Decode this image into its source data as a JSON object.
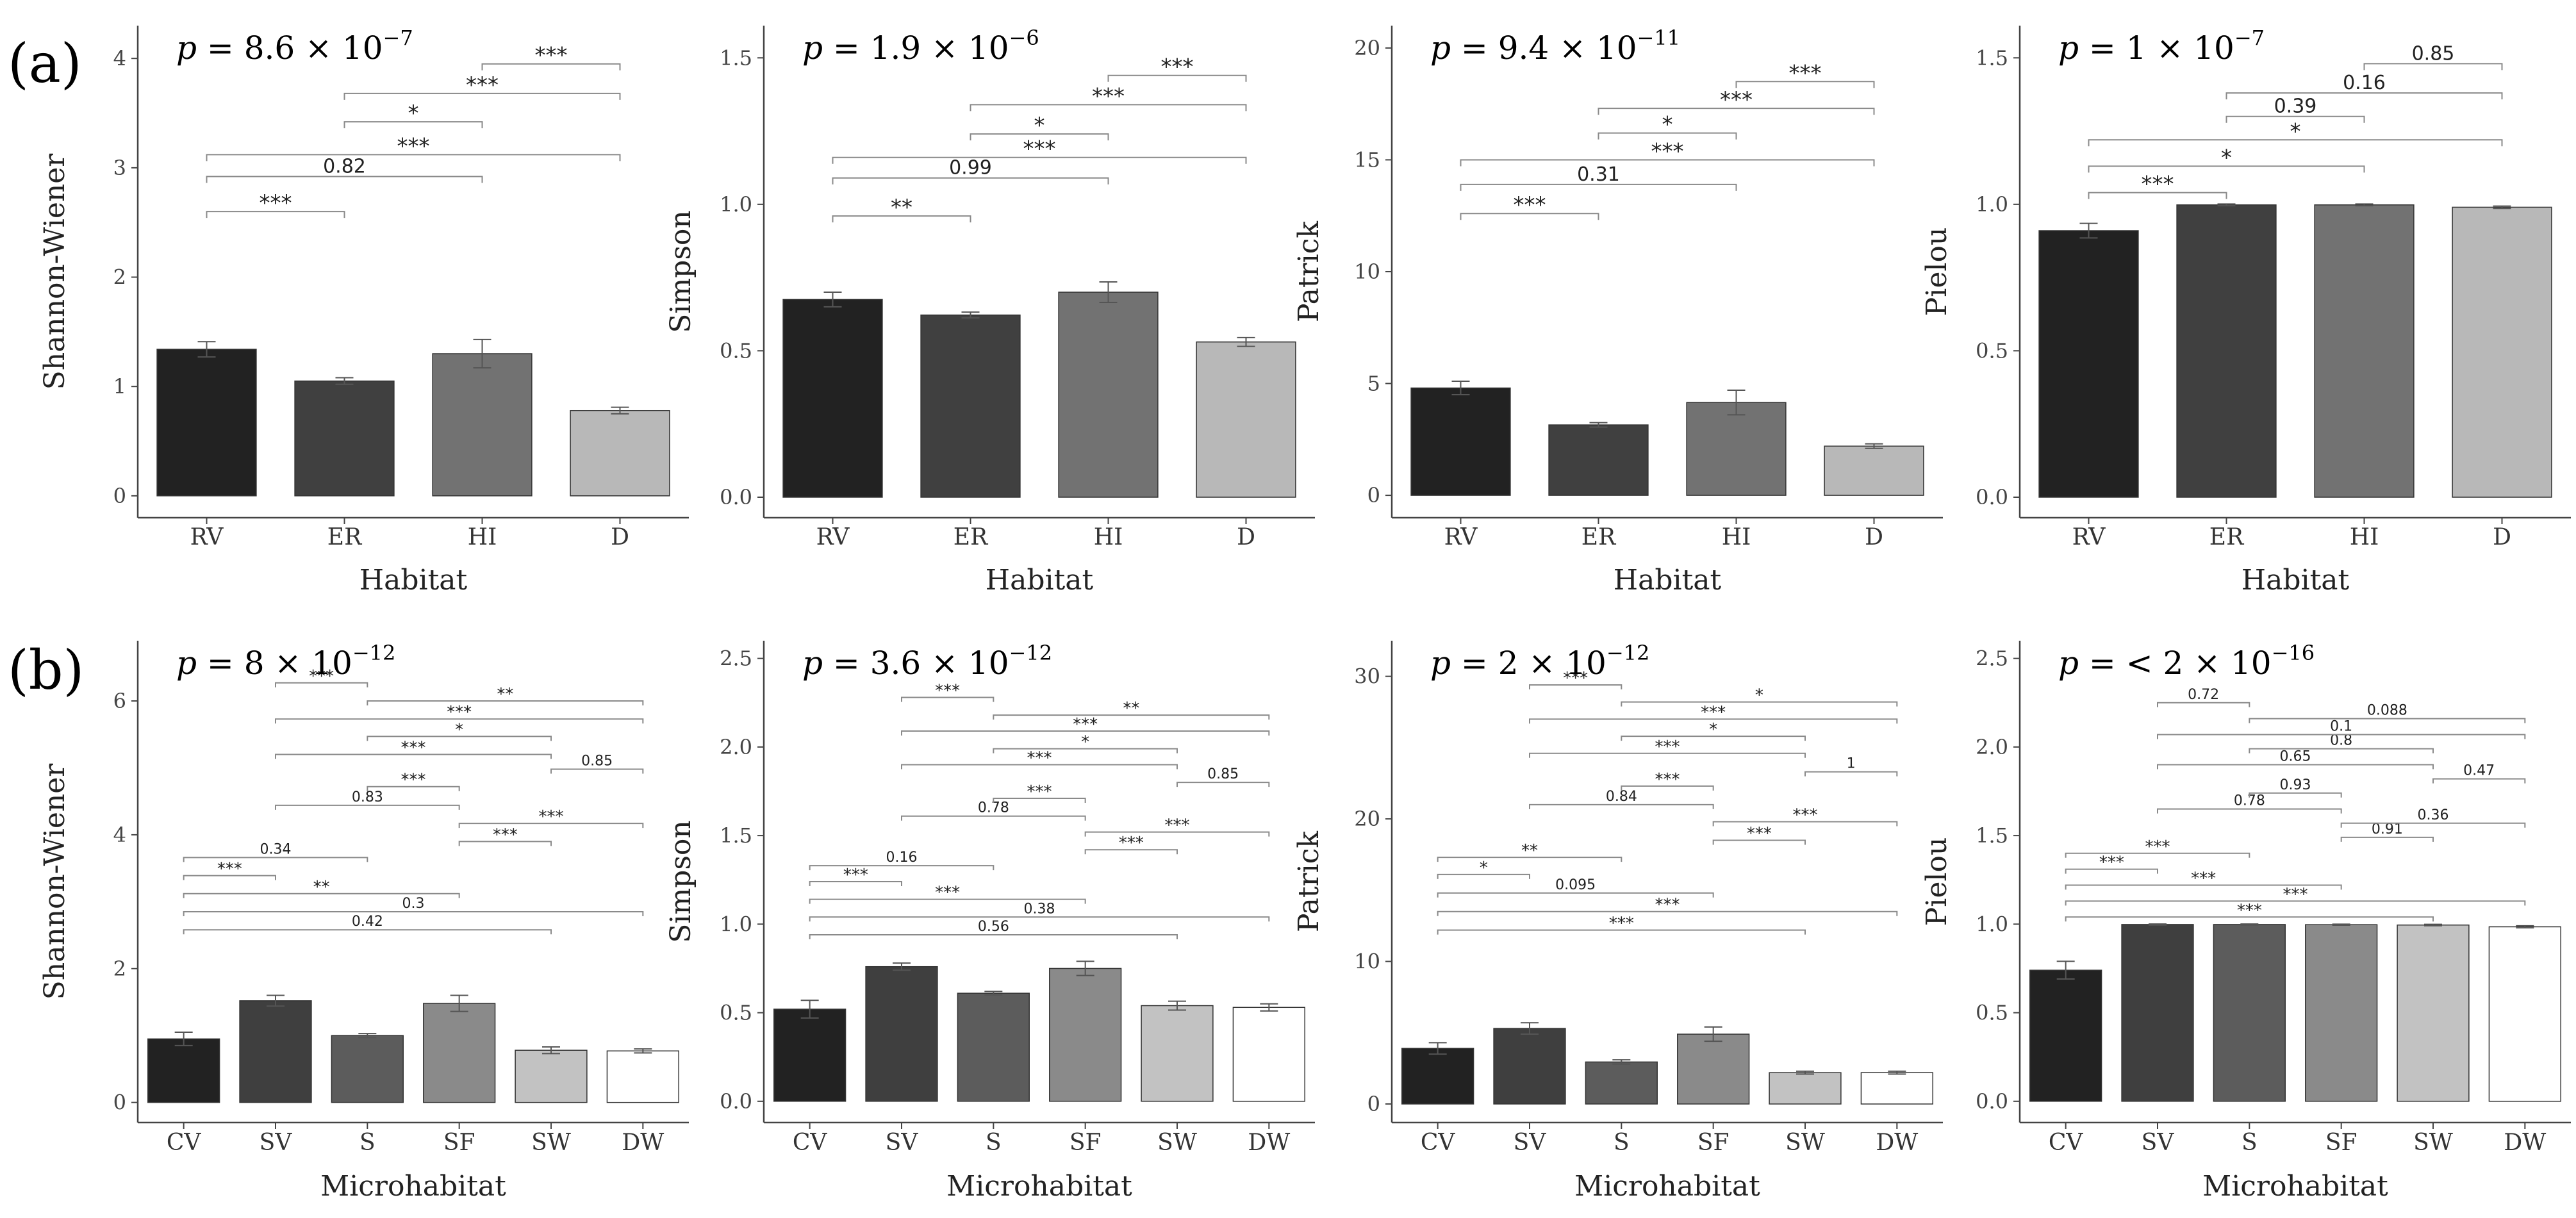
{
  "figure": {
    "row_labels": [
      "(a)",
      "(b)"
    ],
    "colors": {
      "habitat": [
        "#222222",
        "#404040",
        "#727272",
        "#b8b8b8"
      ],
      "microhabitat": [
        "#222222",
        "#3f3f3f",
        "#5c5c5c",
        "#8a8a8a",
        "#c2c2c2",
        "#ffffff"
      ],
      "axis": "#444444",
      "bracket": "#8a8a8a"
    }
  },
  "chart_data": [
    {
      "type": "bar",
      "row": 0,
      "col": 0,
      "title": {
        "base": "8.6",
        "exp": "−7",
        "prefix": ""
      },
      "xlabel": "Habitat",
      "ylabel": "Shannon-Wiener",
      "categories": [
        "RV",
        "ER",
        "HI",
        "D"
      ],
      "values": [
        1.34,
        1.05,
        1.3,
        0.78
      ],
      "errors": [
        0.07,
        0.03,
        0.13,
        0.03
      ],
      "ylim": [
        -0.2,
        4.3
      ],
      "yticks": [
        "0",
        "1",
        "2",
        "3",
        "4"
      ],
      "comparisons": [
        {
          "from": 0,
          "to": 1,
          "y": 2.6,
          "label": "***"
        },
        {
          "from": 0,
          "to": 2,
          "y": 2.92,
          "label": "0.82"
        },
        {
          "from": 0,
          "to": 3,
          "y": 3.12,
          "label": "***"
        },
        {
          "from": 1,
          "to": 2,
          "y": 3.42,
          "label": "*"
        },
        {
          "from": 1,
          "to": 3,
          "y": 3.68,
          "label": "***"
        },
        {
          "from": 2,
          "to": 3,
          "y": 3.95,
          "label": "***"
        }
      ]
    },
    {
      "type": "bar",
      "row": 0,
      "col": 1,
      "title": {
        "base": "1.9",
        "exp": "−6",
        "prefix": ""
      },
      "xlabel": "Habitat",
      "ylabel": "Simpson",
      "categories": [
        "RV",
        "ER",
        "HI",
        "D"
      ],
      "values": [
        0.675,
        0.622,
        0.7,
        0.53
      ],
      "errors": [
        0.025,
        0.01,
        0.035,
        0.015
      ],
      "ylim": [
        -0.07,
        1.61
      ],
      "yticks": [
        "0.0",
        "0.5",
        "1.0",
        "1.5"
      ],
      "comparisons": [
        {
          "from": 0,
          "to": 1,
          "y": 0.96,
          "label": "**"
        },
        {
          "from": 0,
          "to": 2,
          "y": 1.09,
          "label": "0.99"
        },
        {
          "from": 0,
          "to": 3,
          "y": 1.16,
          "label": "***"
        },
        {
          "from": 1,
          "to": 2,
          "y": 1.24,
          "label": "*"
        },
        {
          "from": 1,
          "to": 3,
          "y": 1.34,
          "label": "***"
        },
        {
          "from": 2,
          "to": 3,
          "y": 1.44,
          "label": "***"
        }
      ]
    },
    {
      "type": "bar",
      "row": 0,
      "col": 2,
      "title": {
        "base": "9.4",
        "exp": "−11",
        "prefix": ""
      },
      "xlabel": "Habitat",
      "ylabel": "Patrick",
      "categories": [
        "RV",
        "ER",
        "HI",
        "D"
      ],
      "values": [
        4.8,
        3.15,
        4.15,
        2.2
      ],
      "errors": [
        0.3,
        0.1,
        0.55,
        0.1
      ],
      "ylim": [
        -1.0,
        21.0
      ],
      "yticks": [
        "0",
        "5",
        "10",
        "15",
        "20"
      ],
      "comparisons": [
        {
          "from": 0,
          "to": 1,
          "y": 12.6,
          "label": "***"
        },
        {
          "from": 0,
          "to": 2,
          "y": 13.9,
          "label": "0.31"
        },
        {
          "from": 0,
          "to": 3,
          "y": 15.0,
          "label": "***"
        },
        {
          "from": 1,
          "to": 2,
          "y": 16.2,
          "label": "*"
        },
        {
          "from": 1,
          "to": 3,
          "y": 17.3,
          "label": "***"
        },
        {
          "from": 2,
          "to": 3,
          "y": 18.5,
          "label": "***"
        }
      ]
    },
    {
      "type": "bar",
      "row": 0,
      "col": 3,
      "title": {
        "base": "",
        "exp": "−7",
        "prefix": "1"
      },
      "xlabel": "Habitat",
      "ylabel": "Pielou",
      "categories": [
        "RV",
        "ER",
        "HI",
        "D"
      ],
      "values": [
        0.91,
        0.998,
        0.998,
        0.99
      ],
      "errors": [
        0.025,
        0.003,
        0.003,
        0.004
      ],
      "ylim": [
        -0.07,
        1.61
      ],
      "yticks": [
        "0.0",
        "0.5",
        "1.0",
        "1.5"
      ],
      "comparisons": [
        {
          "from": 0,
          "to": 1,
          "y": 1.04,
          "label": "***"
        },
        {
          "from": 0,
          "to": 2,
          "y": 1.13,
          "label": "*"
        },
        {
          "from": 0,
          "to": 3,
          "y": 1.22,
          "label": "*"
        },
        {
          "from": 1,
          "to": 2,
          "y": 1.3,
          "label": "0.39"
        },
        {
          "from": 1,
          "to": 3,
          "y": 1.38,
          "label": "0.16"
        },
        {
          "from": 2,
          "to": 3,
          "y": 1.48,
          "label": "0.85"
        }
      ]
    },
    {
      "type": "bar",
      "row": 1,
      "col": 0,
      "title": {
        "base": "8",
        "exp": "−12",
        "prefix": ""
      },
      "xlabel": "Microhabitat",
      "ylabel": "Shannon-Wiener",
      "categories": [
        "CV",
        "SV",
        "S",
        "SF",
        "SW",
        "DW"
      ],
      "values": [
        0.95,
        1.52,
        1.0,
        1.48,
        0.78,
        0.77
      ],
      "errors": [
        0.1,
        0.08,
        0.03,
        0.12,
        0.05,
        0.03
      ],
      "ylim": [
        -0.3,
        6.9
      ],
      "yticks": [
        "0",
        "2",
        "4",
        "6"
      ],
      "comparisons": [
        {
          "from": 0,
          "to": 4,
          "y": 2.58,
          "label": "0.42"
        },
        {
          "from": 0,
          "to": 5,
          "y": 2.85,
          "label": "0.3"
        },
        {
          "from": 0,
          "to": 3,
          "y": 3.12,
          "label": "**"
        },
        {
          "from": 0,
          "to": 1,
          "y": 3.39,
          "label": "***"
        },
        {
          "from": 0,
          "to": 2,
          "y": 3.66,
          "label": "0.34"
        },
        {
          "from": 3,
          "to": 4,
          "y": 3.9,
          "label": "***"
        },
        {
          "from": 3,
          "to": 5,
          "y": 4.17,
          "label": "***"
        },
        {
          "from": 1,
          "to": 3,
          "y": 4.44,
          "label": "0.83"
        },
        {
          "from": 2,
          "to": 3,
          "y": 4.72,
          "label": "***"
        },
        {
          "from": 4,
          "to": 5,
          "y": 4.98,
          "label": "0.85"
        },
        {
          "from": 1,
          "to": 4,
          "y": 5.2,
          "label": "***"
        },
        {
          "from": 2,
          "to": 4,
          "y": 5.47,
          "label": "*"
        },
        {
          "from": 1,
          "to": 5,
          "y": 5.73,
          "label": "***"
        },
        {
          "from": 2,
          "to": 5,
          "y": 6.0,
          "label": "**"
        },
        {
          "from": 1,
          "to": 2,
          "y": 6.27,
          "label": "***"
        }
      ]
    },
    {
      "type": "bar",
      "row": 1,
      "col": 1,
      "title": {
        "base": "3.6",
        "exp": "−12",
        "prefix": ""
      },
      "xlabel": "Microhabitat",
      "ylabel": "Simpson",
      "categories": [
        "CV",
        "SV",
        "S",
        "SF",
        "SW",
        "DW"
      ],
      "values": [
        0.52,
        0.76,
        0.61,
        0.75,
        0.54,
        0.53
      ],
      "errors": [
        0.05,
        0.02,
        0.01,
        0.04,
        0.025,
        0.02
      ],
      "ylim": [
        -0.12,
        2.6
      ],
      "yticks": [
        "0.0",
        "0.5",
        "1.0",
        "1.5",
        "2.0",
        "2.5"
      ],
      "comparisons": [
        {
          "from": 0,
          "to": 4,
          "y": 0.94,
          "label": "0.56"
        },
        {
          "from": 0,
          "to": 5,
          "y": 1.04,
          "label": "0.38"
        },
        {
          "from": 0,
          "to": 3,
          "y": 1.14,
          "label": "***"
        },
        {
          "from": 0,
          "to": 1,
          "y": 1.24,
          "label": "***"
        },
        {
          "from": 0,
          "to": 2,
          "y": 1.33,
          "label": "0.16"
        },
        {
          "from": 3,
          "to": 4,
          "y": 1.42,
          "label": "***"
        },
        {
          "from": 3,
          "to": 5,
          "y": 1.52,
          "label": "***"
        },
        {
          "from": 1,
          "to": 3,
          "y": 1.61,
          "label": "0.78"
        },
        {
          "from": 2,
          "to": 3,
          "y": 1.71,
          "label": "***"
        },
        {
          "from": 4,
          "to": 5,
          "y": 1.8,
          "label": "0.85"
        },
        {
          "from": 1,
          "to": 4,
          "y": 1.9,
          "label": "***"
        },
        {
          "from": 2,
          "to": 4,
          "y": 1.99,
          "label": "*"
        },
        {
          "from": 1,
          "to": 5,
          "y": 2.09,
          "label": "***"
        },
        {
          "from": 2,
          "to": 5,
          "y": 2.18,
          "label": "**"
        },
        {
          "from": 1,
          "to": 2,
          "y": 2.28,
          "label": "***"
        }
      ]
    },
    {
      "type": "bar",
      "row": 1,
      "col": 2,
      "title": {
        "base": "2",
        "exp": "−12",
        "prefix": ""
      },
      "xlabel": "Microhabitat",
      "ylabel": "Patrick",
      "categories": [
        "CV",
        "SV",
        "S",
        "SF",
        "SW",
        "DW"
      ],
      "values": [
        3.9,
        5.3,
        2.95,
        4.9,
        2.2,
        2.2
      ],
      "errors": [
        0.4,
        0.4,
        0.15,
        0.5,
        0.1,
        0.1
      ],
      "ylim": [
        -1.3,
        32.5
      ],
      "yticks": [
        "0",
        "10",
        "20",
        "30"
      ],
      "comparisons": [
        {
          "from": 0,
          "to": 4,
          "y": 12.2,
          "label": "***"
        },
        {
          "from": 0,
          "to": 5,
          "y": 13.5,
          "label": "***"
        },
        {
          "from": 0,
          "to": 3,
          "y": 14.8,
          "label": "0.095"
        },
        {
          "from": 0,
          "to": 1,
          "y": 16.1,
          "label": "*"
        },
        {
          "from": 0,
          "to": 2,
          "y": 17.3,
          "label": "**"
        },
        {
          "from": 3,
          "to": 4,
          "y": 18.5,
          "label": "***"
        },
        {
          "from": 3,
          "to": 5,
          "y": 19.8,
          "label": "***"
        },
        {
          "from": 1,
          "to": 3,
          "y": 21.0,
          "label": "0.84"
        },
        {
          "from": 2,
          "to": 3,
          "y": 22.3,
          "label": "***"
        },
        {
          "from": 4,
          "to": 5,
          "y": 23.3,
          "label": "1"
        },
        {
          "from": 1,
          "to": 4,
          "y": 24.6,
          "label": "***"
        },
        {
          "from": 2,
          "to": 4,
          "y": 25.8,
          "label": "*"
        },
        {
          "from": 1,
          "to": 5,
          "y": 27.0,
          "label": "***"
        },
        {
          "from": 2,
          "to": 5,
          "y": 28.2,
          "label": "*"
        },
        {
          "from": 1,
          "to": 2,
          "y": 29.4,
          "label": "***"
        }
      ]
    },
    {
      "type": "bar",
      "row": 1,
      "col": 3,
      "title": {
        "base": "2",
        "exp": "−16",
        "prefix": "< "
      },
      "xlabel": "Microhabitat",
      "ylabel": "Pielou",
      "categories": [
        "CV",
        "SV",
        "S",
        "SF",
        "SW",
        "DW"
      ],
      "values": [
        0.74,
        0.998,
        0.998,
        0.997,
        0.995,
        0.985
      ],
      "errors": [
        0.05,
        0.003,
        0.003,
        0.003,
        0.004,
        0.006
      ],
      "ylim": [
        -0.12,
        2.6
      ],
      "yticks": [
        "0.0",
        "0.5",
        "1.0",
        "1.5",
        "2.0",
        "2.5"
      ],
      "comparisons": [
        {
          "from": 0,
          "to": 4,
          "y": 1.04,
          "label": "***"
        },
        {
          "from": 0,
          "to": 5,
          "y": 1.13,
          "label": "***"
        },
        {
          "from": 0,
          "to": 3,
          "y": 1.22,
          "label": "***"
        },
        {
          "from": 0,
          "to": 1,
          "y": 1.31,
          "label": "***"
        },
        {
          "from": 0,
          "to": 2,
          "y": 1.4,
          "label": "***"
        },
        {
          "from": 3,
          "to": 4,
          "y": 1.49,
          "label": "0.91"
        },
        {
          "from": 3,
          "to": 5,
          "y": 1.57,
          "label": "0.36"
        },
        {
          "from": 1,
          "to": 3,
          "y": 1.65,
          "label": "0.78"
        },
        {
          "from": 2,
          "to": 3,
          "y": 1.74,
          "label": "0.93"
        },
        {
          "from": 4,
          "to": 5,
          "y": 1.82,
          "label": "0.47"
        },
        {
          "from": 1,
          "to": 4,
          "y": 1.9,
          "label": "0.65"
        },
        {
          "from": 2,
          "to": 4,
          "y": 1.99,
          "label": "0.8"
        },
        {
          "from": 1,
          "to": 5,
          "y": 2.07,
          "label": "0.1"
        },
        {
          "from": 2,
          "to": 5,
          "y": 2.16,
          "label": "0.088"
        },
        {
          "from": 1,
          "to": 2,
          "y": 2.25,
          "label": "0.72"
        }
      ]
    }
  ]
}
